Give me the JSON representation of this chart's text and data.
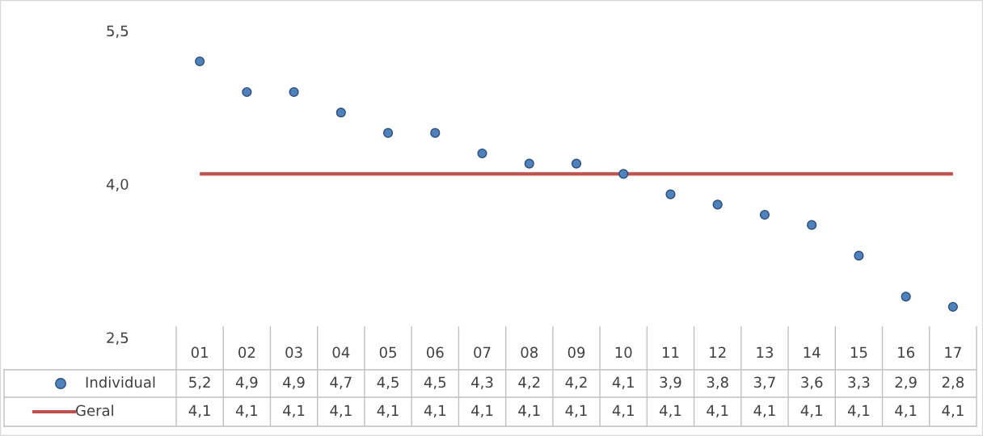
{
  "chart_data": {
    "type": "scatter",
    "categories": [
      "01",
      "02",
      "03",
      "04",
      "05",
      "06",
      "07",
      "08",
      "09",
      "10",
      "11",
      "12",
      "13",
      "14",
      "15",
      "16",
      "17"
    ],
    "series": [
      {
        "name": "Individual",
        "color": "#4f81bd",
        "marker": "circle",
        "values": [
          5.2,
          4.9,
          4.9,
          4.7,
          4.5,
          4.5,
          4.3,
          4.2,
          4.2,
          4.1,
          3.9,
          3.8,
          3.7,
          3.6,
          3.3,
          2.9,
          2.8
        ],
        "value_labels": [
          "5,2",
          "4,9",
          "4,9",
          "4,7",
          "4,5",
          "4,5",
          "4,3",
          "4,2",
          "4,2",
          "4,1",
          "3,9",
          "3,8",
          "3,7",
          "3,6",
          "3,3",
          "2,9",
          "2,8"
        ]
      },
      {
        "name": "Geral",
        "type": "line",
        "color": "#c0504d",
        "marker": "none",
        "values": [
          4.1,
          4.1,
          4.1,
          4.1,
          4.1,
          4.1,
          4.1,
          4.1,
          4.1,
          4.1,
          4.1,
          4.1,
          4.1,
          4.1,
          4.1,
          4.1,
          4.1
        ],
        "value_labels": [
          "4,1",
          "4,1",
          "4,1",
          "4,1",
          "4,1",
          "4,1",
          "4,1",
          "4,1",
          "4,1",
          "4,1",
          "4,1",
          "4,1",
          "4,1",
          "4,1",
          "4,1",
          "4,1",
          "4,1"
        ]
      }
    ],
    "ylim": [
      2.5,
      5.5
    ],
    "yticks": [
      {
        "value": 2.5,
        "label": "2,5"
      },
      {
        "value": 4.0,
        "label": "4,0"
      },
      {
        "value": 5.5,
        "label": "5,5"
      }
    ],
    "legend": "bottom"
  }
}
